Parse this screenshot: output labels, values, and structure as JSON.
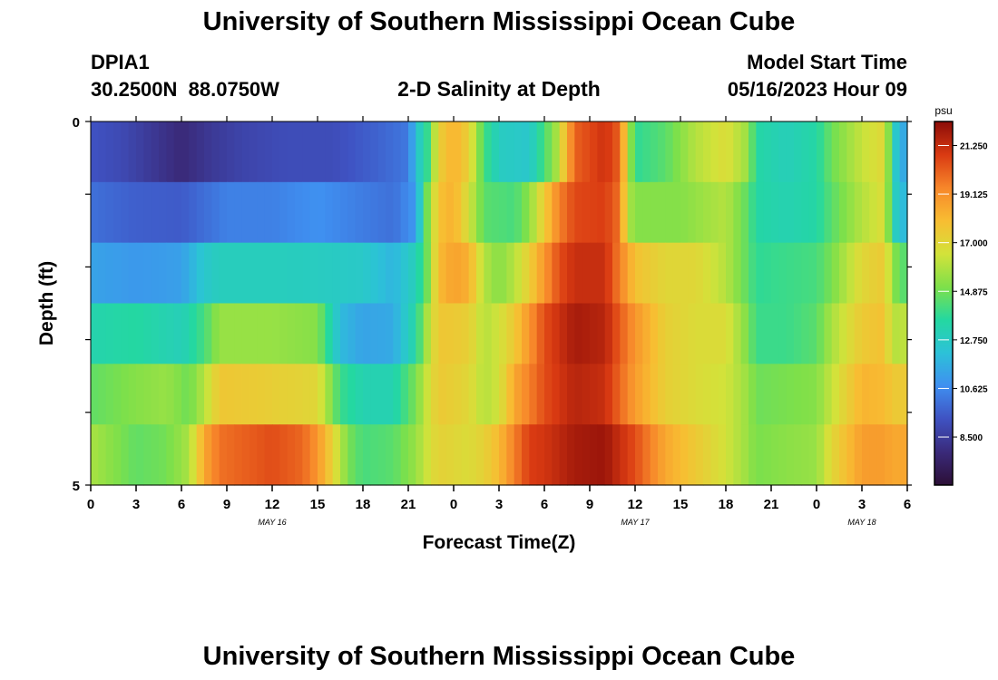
{
  "title": "University of Southern Mississippi Ocean Cube",
  "station": {
    "id": "DPIA1",
    "coords": "30.2500N  88.0750W"
  },
  "subtitle": "2-D Salinity at Depth",
  "model": {
    "label": "Model Start Time",
    "time": "05/16/2023 Hour 09"
  },
  "footer_title": "University of Southern Mississippi Ocean Cube",
  "colors": {
    "ramp": [
      "#2c0f36",
      "#3a2a7a",
      "#3f52c2",
      "#3f8ff0",
      "#2cc2d8",
      "#24d8a0",
      "#7ee04a",
      "#d3e23a",
      "#f8bd32",
      "#f7862a",
      "#d93a12",
      "#8b0c08"
    ]
  },
  "chart_data": {
    "type": "heatmap",
    "xlabel": "Forecast Time(Z)",
    "ylabel": "Depth (ft)",
    "x_start_hour": 0,
    "x_end_hour": 54,
    "x_ticks": [
      {
        "hour": 0,
        "label": "0"
      },
      {
        "hour": 3,
        "label": "3"
      },
      {
        "hour": 6,
        "label": "6"
      },
      {
        "hour": 9,
        "label": "9"
      },
      {
        "hour": 12,
        "label": "12"
      },
      {
        "hour": 15,
        "label": "15"
      },
      {
        "hour": 18,
        "label": "18"
      },
      {
        "hour": 21,
        "label": "21"
      },
      {
        "hour": 24,
        "label": "0"
      },
      {
        "hour": 27,
        "label": "3"
      },
      {
        "hour": 30,
        "label": "6"
      },
      {
        "hour": 33,
        "label": "9"
      },
      {
        "hour": 36,
        "label": "12"
      },
      {
        "hour": 39,
        "label": "15"
      },
      {
        "hour": 42,
        "label": "18"
      },
      {
        "hour": 45,
        "label": "21"
      },
      {
        "hour": 48,
        "label": "0"
      },
      {
        "hour": 51,
        "label": "3"
      },
      {
        "hour": 54,
        "label": "6"
      }
    ],
    "date_labels": [
      {
        "hour": 12,
        "label": "MAY 16"
      },
      {
        "hour": 36,
        "label": "MAY 17"
      },
      {
        "hour": 51,
        "label": "MAY 18"
      }
    ],
    "y_range": [
      0,
      5
    ],
    "y_ticks": [
      {
        "value": 0,
        "label": "0"
      },
      {
        "value": 5,
        "label": "5"
      }
    ],
    "depth_levels": [
      0,
      1,
      2,
      3,
      4,
      5
    ],
    "colorbar": {
      "unit": "psu",
      "min": 6.4,
      "max": 22.3,
      "ticks": [
        "21.250",
        "19.125",
        "17.000",
        "14.875",
        "12.750",
        "10.625",
        "8.500"
      ]
    },
    "salinity_keyframes": [
      {
        "depth_row": 0,
        "points": [
          [
            0,
            9.3
          ],
          [
            2,
            9.0
          ],
          [
            4,
            8.4
          ],
          [
            6,
            7.8
          ],
          [
            8,
            8.4
          ],
          [
            10,
            8.8
          ],
          [
            13,
            9.1
          ],
          [
            16,
            9.1
          ],
          [
            19,
            9.7
          ],
          [
            21,
            10.2
          ],
          [
            21.6,
            12.5
          ],
          [
            22.3,
            14.0
          ],
          [
            23,
            17.3
          ],
          [
            24,
            18.3
          ],
          [
            25,
            17.3
          ],
          [
            26,
            14.2
          ],
          [
            27,
            12.8
          ],
          [
            29,
            12.5
          ],
          [
            30.7,
            15.5
          ],
          [
            31.5,
            18.3
          ],
          [
            32,
            20.1
          ],
          [
            34,
            21.1
          ],
          [
            35,
            20.1
          ],
          [
            35.5,
            16.3
          ],
          [
            36,
            13.8
          ],
          [
            38,
            14.5
          ],
          [
            40,
            16.0
          ],
          [
            42,
            16.8
          ],
          [
            43.5,
            15.5
          ],
          [
            44,
            13.5
          ],
          [
            46,
            13.0
          ],
          [
            48,
            13.5
          ],
          [
            49,
            14.8
          ],
          [
            51,
            16.3
          ],
          [
            52.5,
            17.0
          ],
          [
            53,
            13.5
          ],
          [
            53.5,
            11.5
          ],
          [
            54,
            11.5
          ]
        ]
      },
      {
        "depth_row": 1,
        "points": [
          [
            0,
            10.0
          ],
          [
            3,
            9.6
          ],
          [
            6,
            9.5
          ],
          [
            9,
            10.4
          ],
          [
            12,
            10.4
          ],
          [
            15,
            10.8
          ],
          [
            18,
            10.3
          ],
          [
            20,
            10.0
          ],
          [
            21.5,
            11.0
          ],
          [
            22,
            14.0
          ],
          [
            23,
            17.8
          ],
          [
            24,
            18.3
          ],
          [
            25,
            16.6
          ],
          [
            26,
            14.5
          ],
          [
            28,
            14.2
          ],
          [
            29,
            15.3
          ],
          [
            30,
            17.5
          ],
          [
            31,
            19.5
          ],
          [
            32,
            20.6
          ],
          [
            34,
            20.8
          ],
          [
            35,
            19.8
          ],
          [
            35.5,
            16.0
          ],
          [
            36,
            15.2
          ],
          [
            39,
            15.2
          ],
          [
            42,
            16.0
          ],
          [
            43.5,
            14.5
          ],
          [
            44,
            13.5
          ],
          [
            46,
            13.2
          ],
          [
            48,
            13.5
          ],
          [
            49,
            14.5
          ],
          [
            51,
            16.0
          ],
          [
            52.5,
            16.8
          ],
          [
            53,
            13.5
          ],
          [
            53.5,
            12.0
          ],
          [
            54,
            12.0
          ]
        ]
      },
      {
        "depth_row": 2,
        "points": [
          [
            0,
            11.3
          ],
          [
            3,
            11.0
          ],
          [
            6,
            11.2
          ],
          [
            7.5,
            12.5
          ],
          [
            8.5,
            12.9
          ],
          [
            12,
            12.9
          ],
          [
            15,
            12.8
          ],
          [
            18,
            12.6
          ],
          [
            20,
            11.8
          ],
          [
            21.5,
            13.0
          ],
          [
            22.3,
            15.0
          ],
          [
            23,
            18.0
          ],
          [
            24,
            18.7
          ],
          [
            25,
            18.3
          ],
          [
            26,
            16.0
          ],
          [
            27,
            15.2
          ],
          [
            28,
            16.0
          ],
          [
            29,
            17.3
          ],
          [
            30,
            19.0
          ],
          [
            31,
            20.5
          ],
          [
            32,
            21.2
          ],
          [
            34,
            21.2
          ],
          [
            35,
            19.5
          ],
          [
            36,
            17.8
          ],
          [
            38,
            17.0
          ],
          [
            40,
            17.0
          ],
          [
            42,
            16.0
          ],
          [
            43.5,
            14.5
          ],
          [
            44,
            13.8
          ],
          [
            46,
            14.0
          ],
          [
            48,
            14.2
          ],
          [
            49,
            15.0
          ],
          [
            51,
            17.0
          ],
          [
            52.5,
            17.5
          ],
          [
            53,
            15.5
          ],
          [
            53.5,
            14.5
          ],
          [
            54,
            14.5
          ]
        ]
      },
      {
        "depth_row": 3,
        "points": [
          [
            0,
            13.3
          ],
          [
            3,
            13.6
          ],
          [
            6,
            13.0
          ],
          [
            7.5,
            14.2
          ],
          [
            8.5,
            15.5
          ],
          [
            12,
            15.5
          ],
          [
            15,
            15.2
          ],
          [
            16.5,
            12.0
          ],
          [
            18,
            11.3
          ],
          [
            20,
            11.5
          ],
          [
            21.5,
            13.5
          ],
          [
            22.3,
            16.0
          ],
          [
            23,
            17.6
          ],
          [
            24,
            17.5
          ],
          [
            25,
            17.3
          ],
          [
            26,
            16.0
          ],
          [
            27,
            16.5
          ],
          [
            28,
            17.5
          ],
          [
            29,
            19.0
          ],
          [
            30,
            20.5
          ],
          [
            32,
            21.8
          ],
          [
            34,
            21.5
          ],
          [
            35,
            20.2
          ],
          [
            36,
            19.0
          ],
          [
            38,
            17.3
          ],
          [
            40,
            16.8
          ],
          [
            42,
            16.8
          ],
          [
            43.5,
            15.0
          ],
          [
            44,
            14.0
          ],
          [
            46,
            14.0
          ],
          [
            48,
            14.5
          ],
          [
            49,
            15.8
          ],
          [
            51,
            17.5
          ],
          [
            52.5,
            17.8
          ],
          [
            53,
            16.0
          ],
          [
            54,
            16.2
          ]
        ]
      },
      {
        "depth_row": 4,
        "points": [
          [
            0,
            14.6
          ],
          [
            3,
            15.2
          ],
          [
            5,
            15.5
          ],
          [
            6.5,
            14.8
          ],
          [
            7.5,
            16.0
          ],
          [
            8.5,
            17.6
          ],
          [
            12,
            17.3
          ],
          [
            15,
            17.0
          ],
          [
            16.5,
            14.0
          ],
          [
            18,
            13.2
          ],
          [
            20,
            13.2
          ],
          [
            21.5,
            15.0
          ],
          [
            22.3,
            16.5
          ],
          [
            23,
            17.5
          ],
          [
            24,
            17.3
          ],
          [
            25,
            17.0
          ],
          [
            26,
            16.0
          ],
          [
            27,
            16.5
          ],
          [
            28,
            18.5
          ],
          [
            29,
            19.5
          ],
          [
            30,
            20.5
          ],
          [
            32,
            21.5
          ],
          [
            34,
            21.2
          ],
          [
            35,
            20.0
          ],
          [
            36,
            18.8
          ],
          [
            38,
            17.3
          ],
          [
            40,
            16.8
          ],
          [
            42,
            16.5
          ],
          [
            43.5,
            15.5
          ],
          [
            44,
            14.8
          ],
          [
            46,
            15.0
          ],
          [
            48,
            15.2
          ],
          [
            49,
            16.3
          ],
          [
            51,
            18.2
          ],
          [
            52.5,
            18.0
          ],
          [
            53,
            17.5
          ],
          [
            54,
            17.5
          ]
        ]
      },
      {
        "depth_row": 5,
        "points": [
          [
            0,
            15.8
          ],
          [
            3,
            14.6
          ],
          [
            5,
            14.9
          ],
          [
            6.5,
            15.8
          ],
          [
            7.5,
            18.5
          ],
          [
            8.5,
            19.8
          ],
          [
            12,
            20.5
          ],
          [
            14,
            20.0
          ],
          [
            15,
            19.0
          ],
          [
            16,
            17.2
          ],
          [
            17,
            15.0
          ],
          [
            18,
            14.2
          ],
          [
            20,
            14.5
          ],
          [
            21.5,
            15.5
          ],
          [
            22.3,
            16.5
          ],
          [
            23,
            17.2
          ],
          [
            24,
            17.0
          ],
          [
            25,
            16.8
          ],
          [
            26,
            17.2
          ],
          [
            27,
            18.0
          ],
          [
            28,
            19.5
          ],
          [
            29,
            20.8
          ],
          [
            30,
            21.0
          ],
          [
            32,
            21.8
          ],
          [
            34,
            22.0
          ],
          [
            35,
            21.2
          ],
          [
            36,
            20.5
          ],
          [
            37,
            19.5
          ],
          [
            38,
            18.5
          ],
          [
            40,
            17.5
          ],
          [
            42,
            16.5
          ],
          [
            43.5,
            15.5
          ],
          [
            44,
            15.0
          ],
          [
            46,
            15.3
          ],
          [
            48,
            15.5
          ],
          [
            49,
            17.0
          ],
          [
            51,
            18.8
          ],
          [
            52.5,
            18.8
          ],
          [
            53,
            18.5
          ],
          [
            54,
            18.6
          ]
        ]
      }
    ]
  }
}
